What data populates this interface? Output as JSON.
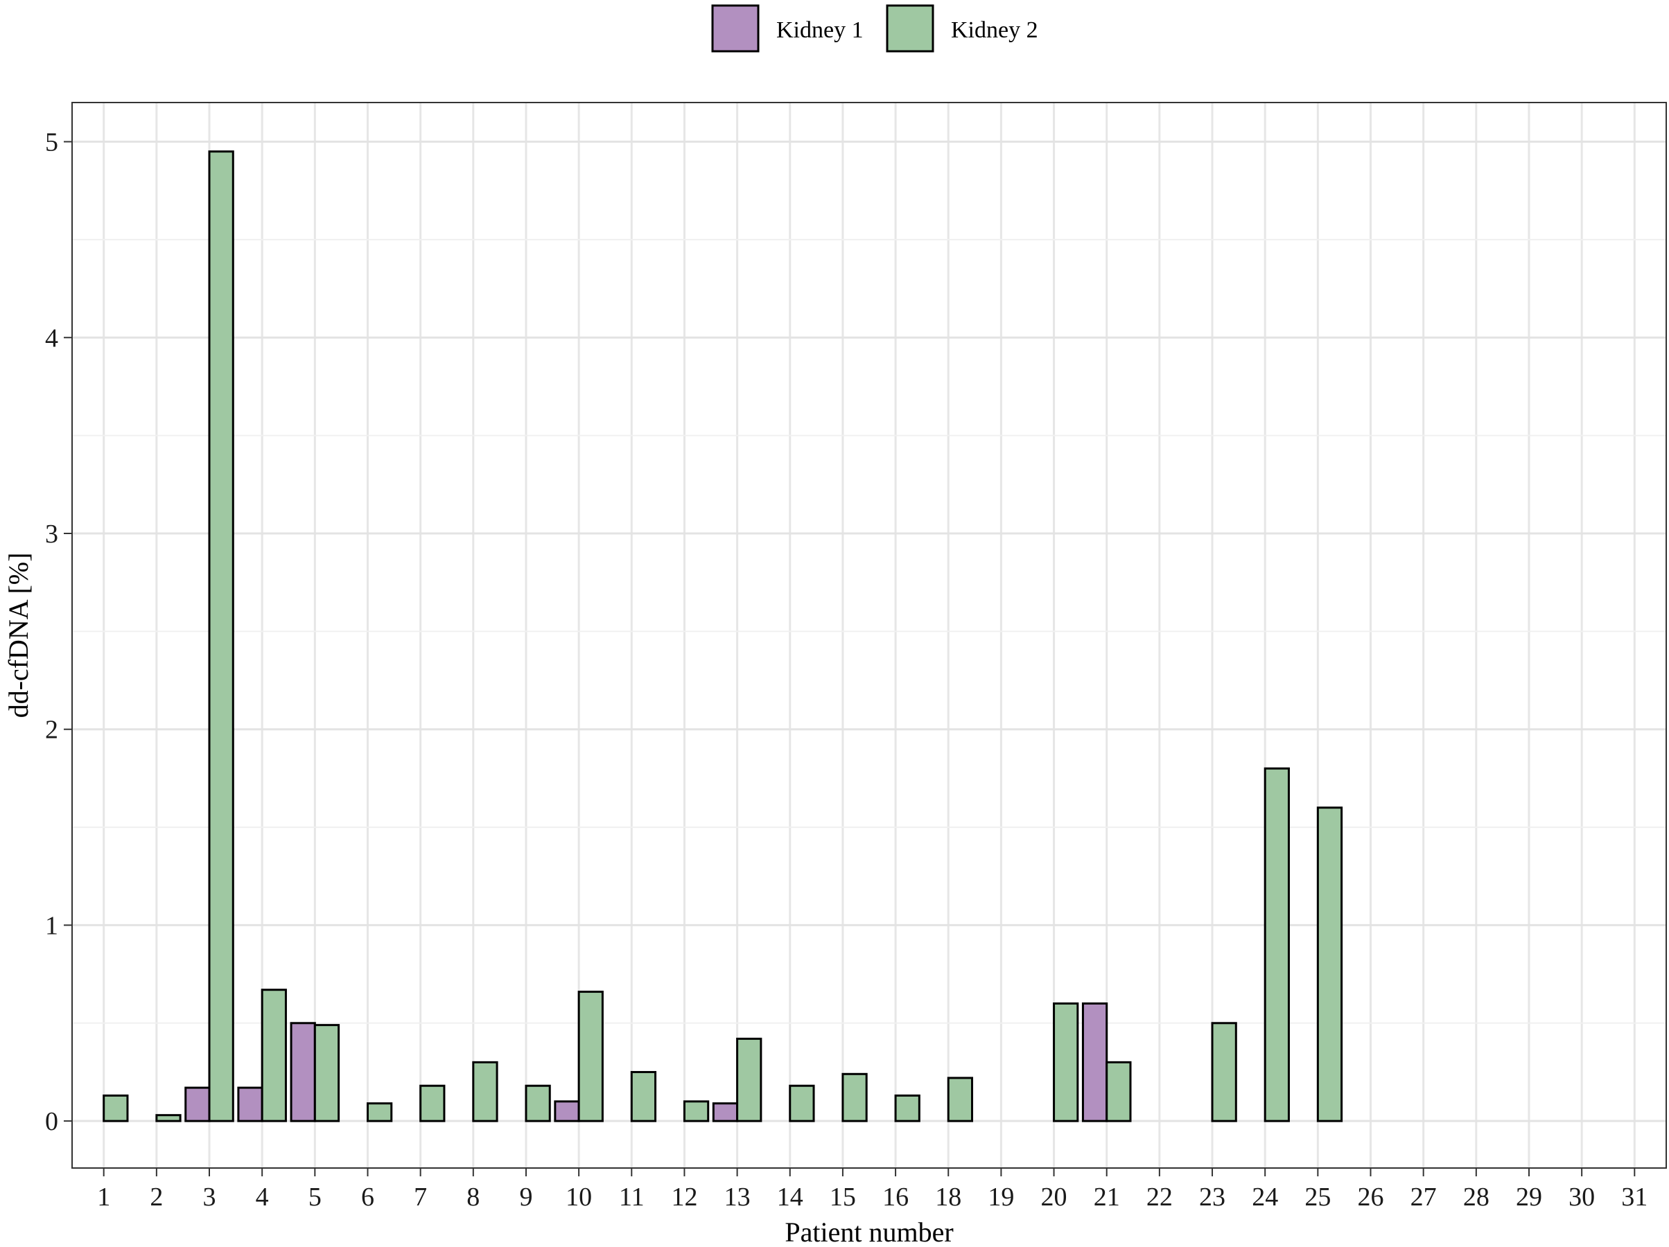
{
  "chart_data": {
    "type": "bar",
    "xlabel": "Patient number",
    "ylabel": "dd-cfDNA [%]",
    "ylim": [
      -0.24,
      5.2
    ],
    "yticks": [
      0,
      1,
      2,
      3,
      4,
      5
    ],
    "grid": true,
    "legend": "top",
    "categories": [
      "1",
      "2",
      "3",
      "4",
      "5",
      "6",
      "7",
      "8",
      "9",
      "10",
      "11",
      "12",
      "13",
      "14",
      "15",
      "16",
      "18",
      "19",
      "20",
      "21",
      "22",
      "23",
      "24",
      "25",
      "26",
      "27",
      "28",
      "29",
      "30",
      "31"
    ],
    "series": [
      {
        "name": "Kidney 1",
        "color": "#b290c0",
        "values": [
          0,
          0,
          0.17,
          0.17,
          0.5,
          0,
          0,
          0,
          0,
          0.1,
          0,
          0,
          0.09,
          0,
          0,
          0,
          0,
          0,
          0,
          0.6,
          0,
          0,
          0,
          0,
          0,
          0,
          0,
          0,
          0,
          0
        ]
      },
      {
        "name": "Kidney 2",
        "color": "#9fc8a2",
        "values": [
          0.13,
          0.03,
          4.95,
          0.67,
          0.49,
          0.09,
          0.18,
          0.3,
          0.18,
          0.66,
          0.25,
          0.1,
          0.42,
          0.18,
          0.24,
          0.13,
          0.22,
          0,
          0.6,
          0.3,
          0,
          0.5,
          1.8,
          1.6,
          0,
          0,
          0,
          0,
          0,
          0
        ]
      }
    ]
  }
}
